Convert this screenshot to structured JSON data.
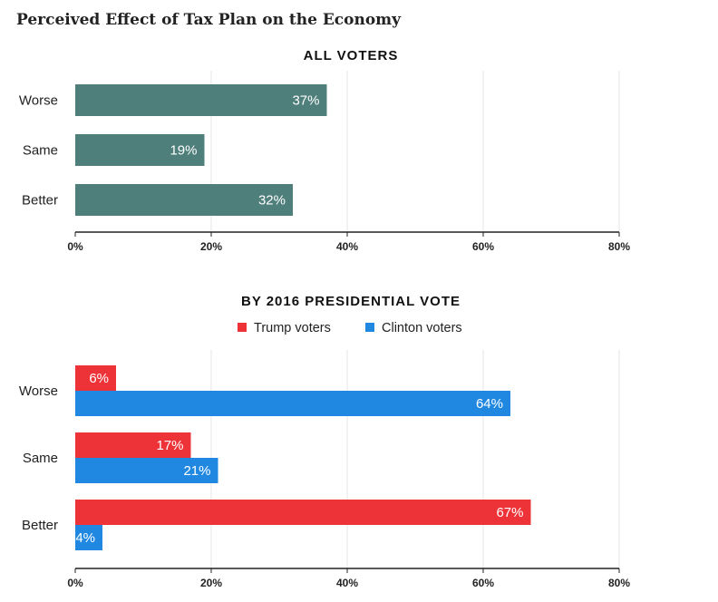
{
  "title": "Perceived Effect of Tax Plan on the Economy",
  "colors": {
    "all": "#4f7f7b",
    "trump": "#ee3338",
    "clinton": "#2188e2"
  },
  "chart_data": [
    {
      "type": "bar",
      "orientation": "horizontal",
      "title": "ALL VOTERS",
      "categories": [
        "Worse",
        "Same",
        "Better"
      ],
      "series": [
        {
          "values": [
            37,
            19,
            32
          ],
          "labels": [
            "37%",
            "19%",
            "32%"
          ]
        }
      ],
      "xlim": [
        0,
        80
      ],
      "xticks": [
        "0%",
        "20%",
        "40%",
        "60%",
        "80%"
      ],
      "grid": true
    },
    {
      "type": "bar",
      "orientation": "horizontal",
      "title": "BY 2016 PRESIDENTIAL VOTE",
      "categories": [
        "Worse",
        "Same",
        "Better"
      ],
      "series": [
        {
          "name": "Trump voters",
          "values": [
            6,
            17,
            67
          ],
          "labels": [
            "6%",
            "17%",
            "67%"
          ]
        },
        {
          "name": "Clinton voters",
          "values": [
            64,
            21,
            4
          ],
          "labels": [
            "64%",
            "21%",
            "4%"
          ]
        }
      ],
      "xlim": [
        0,
        80
      ],
      "xticks": [
        "0%",
        "20%",
        "40%",
        "60%",
        "80%"
      ],
      "legend": "top",
      "grid": true
    }
  ]
}
